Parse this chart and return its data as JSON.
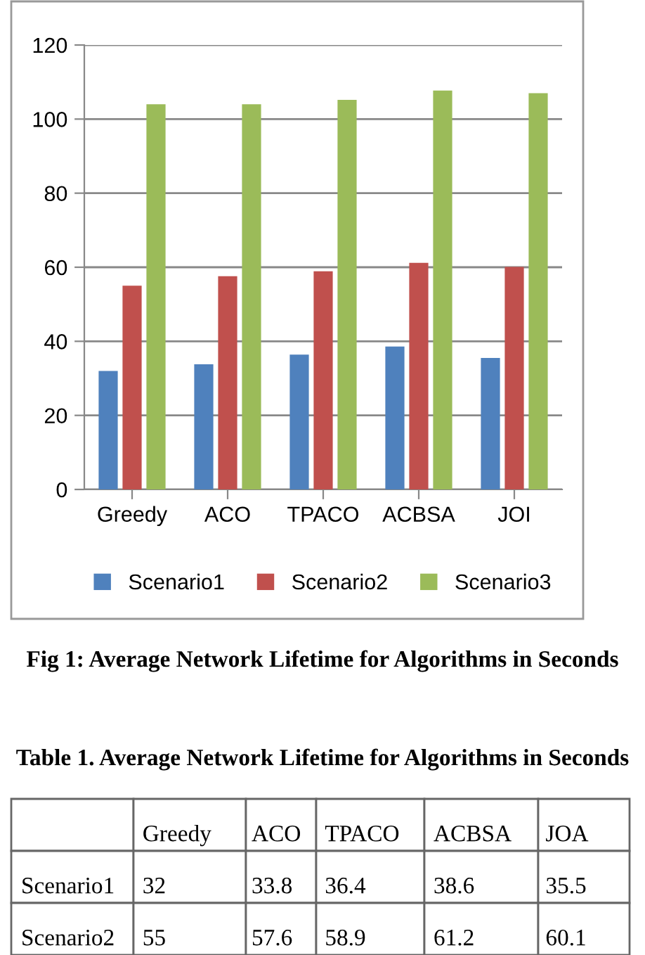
{
  "chart_data": {
    "type": "bar",
    "categories": [
      "Greedy",
      "ACO",
      "TPACO",
      "ACBSA",
      "JOI"
    ],
    "series": [
      {
        "name": "Scenario1",
        "color": "#4f81bd",
        "values": [
          32,
          33.8,
          36.4,
          38.6,
          35.5
        ]
      },
      {
        "name": "Scenario2",
        "color": "#c0504d",
        "values": [
          55,
          57.6,
          58.9,
          61.2,
          60.1
        ]
      },
      {
        "name": "Scenario3",
        "color": "#9bbb59",
        "values": [
          104,
          104,
          105.2,
          107.7,
          107
        ]
      }
    ],
    "ylim": [
      0,
      120
    ],
    "yticks": [
      0,
      20,
      40,
      60,
      80,
      100,
      120
    ],
    "grid": "y",
    "legend": "bottom",
    "annotations": [
      "Fig 1: Average Network Lifetime for Algorithms in Seconds",
      "Table 1. Average Network Lifetime for Algorithms in Seconds",
      "Greedy",
      "ACO",
      "TPACO",
      "ACBSA",
      "JOA",
      "Scenario1",
      "32",
      "33.8",
      "36.4",
      "38.6",
      "35.5",
      "Scenario2",
      "55",
      "57.6",
      "58.9",
      "61.2",
      "60.1"
    ]
  }
}
